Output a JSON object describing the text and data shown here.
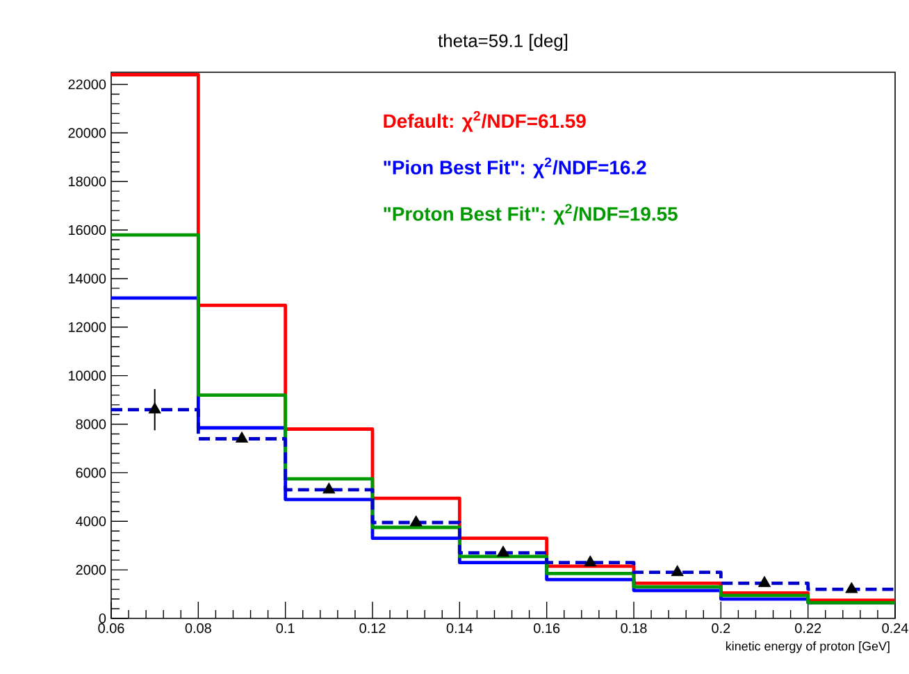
{
  "chart_data": {
    "type": "histogram",
    "title": "theta=59.1 [deg]",
    "xlabel": "kinetic energy of proton [GeV]",
    "bins": [
      0.06,
      0.08,
      0.1,
      0.12,
      0.14,
      0.16,
      0.18,
      0.2,
      0.22,
      0.24
    ],
    "series": [
      {
        "name": "Default: χ$^{2}$/NDF=61.59",
        "color": "#ff0000",
        "values": [
          22400,
          12900,
          7800,
          4950,
          3300,
          2150,
          1450,
          1050,
          750
        ]
      },
      {
        "name": "\"Pion Best Fit\": χ$^{2}$/NDF=16.2",
        "color": "#0000ff",
        "values": [
          13200,
          7850,
          4900,
          3300,
          2300,
          1600,
          1150,
          800,
          650
        ]
      },
      {
        "name": "\"Proton Best Fit\": χ$^{2}$/NDF=19.55",
        "color": "#009900",
        "values": [
          15800,
          9200,
          5750,
          3750,
          2550,
          1850,
          1300,
          950,
          650
        ]
      },
      {
        "color": "#0000cc",
        "line_style": "dashed",
        "values": [
          8600,
          7400,
          5300,
          3950,
          2700,
          2300,
          1900,
          1450,
          1200
        ]
      },
      {
        "type": "scatter",
        "marker": "triangle",
        "color": "#000000",
        "x": [
          0.07,
          0.09,
          0.11,
          0.13,
          0.15,
          0.17,
          0.19,
          0.21,
          0.23
        ],
        "values": [
          8600,
          7400,
          5300,
          3950,
          2700,
          2300,
          1900,
          1450,
          1200
        ],
        "errors": [
          850,
          null,
          null,
          null,
          null,
          null,
          null,
          null,
          null
        ]
      }
    ],
    "xlim": [
      0.06,
      0.24
    ],
    "xticks": [
      0.06,
      0.08,
      0.1,
      0.12,
      0.14,
      0.16,
      0.18,
      0.2,
      0.22,
      0.24
    ],
    "ylim": [
      0,
      22500
    ],
    "yticks": [
      0,
      2000,
      4000,
      6000,
      8000,
      10000,
      12000,
      14000,
      16000,
      18000,
      20000,
      22000
    ],
    "legend": "top right"
  }
}
